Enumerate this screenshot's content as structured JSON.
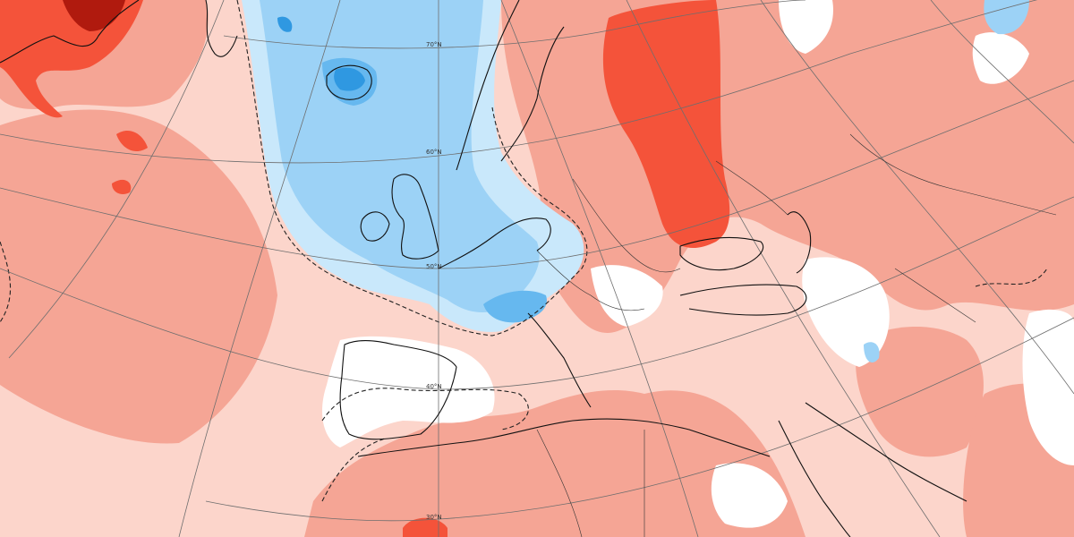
{
  "map": {
    "latitude_labels": [
      {
        "id": "lat-70",
        "text": "70°N"
      },
      {
        "id": "lat-60",
        "text": "60°N"
      },
      {
        "id": "lat-50",
        "text": "50°N"
      },
      {
        "id": "lat-40",
        "text": "40°N"
      },
      {
        "id": "lat-30",
        "text": "30°N"
      }
    ],
    "colors": {
      "dark_red": "#b01a0e",
      "red": "#f4533a",
      "salmon": "#f5a595",
      "light_pink": "#fcd5cb",
      "neutral": "#ffffff",
      "light_blue": "#c9e8fb",
      "blue": "#9cd2f6",
      "mid_blue": "#66b8ef",
      "deep_blue": "#2f98e1"
    },
    "features": {
      "anomaly_field": "shaded anomaly",
      "zero_contour": "dashed",
      "coastlines": "solid",
      "graticule": "thin grey"
    }
  }
}
